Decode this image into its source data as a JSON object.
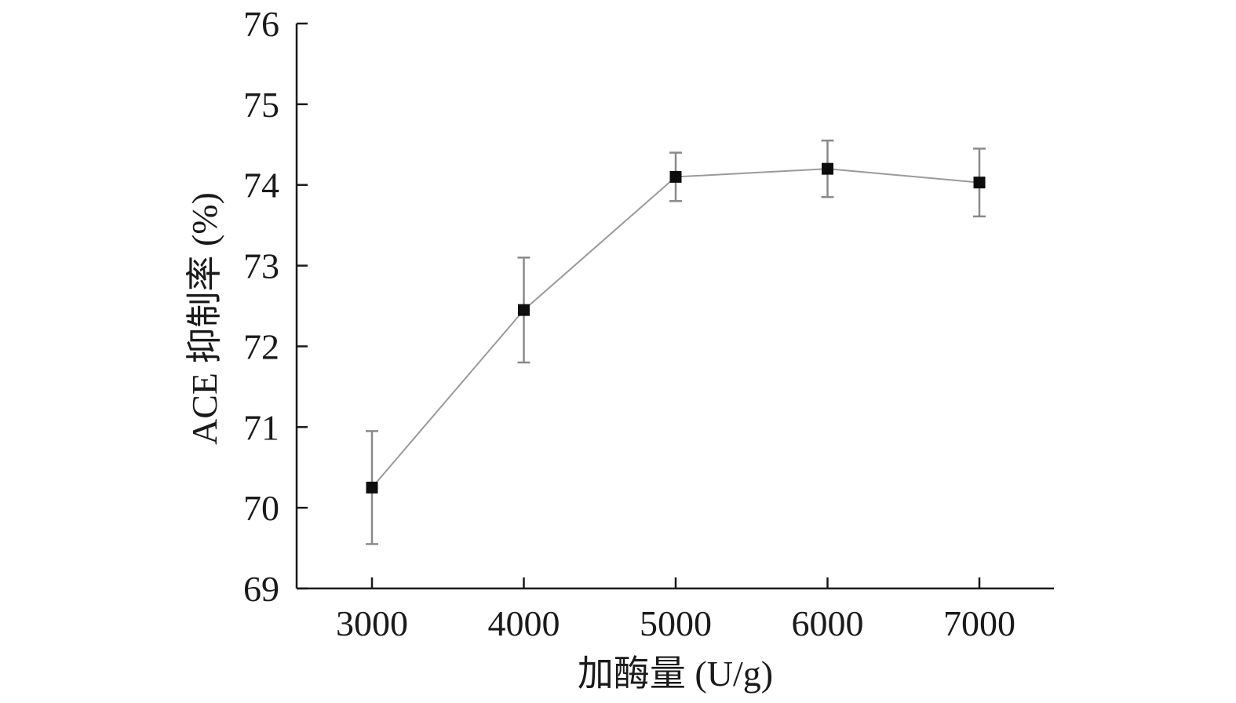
{
  "chart_data": {
    "type": "line",
    "title": "",
    "xlabel": "加酶量 (U/g)",
    "ylabel": "ACE 抑制率 (%)",
    "x": [
      3000,
      4000,
      5000,
      6000,
      7000
    ],
    "x_tick_labels": [
      "3000",
      "4000",
      "5000",
      "6000",
      "7000"
    ],
    "ylim": [
      69,
      76
    ],
    "y_ticks": [
      69,
      70,
      71,
      72,
      73,
      74,
      75,
      76
    ],
    "y_tick_labels": [
      "69",
      "70",
      "71",
      "72",
      "73",
      "74",
      "75",
      "76"
    ],
    "grid": false,
    "series": [
      {
        "values": [
          70.25,
          72.45,
          74.1,
          74.2,
          74.03
        ],
        "error": [
          0.7,
          0.65,
          0.3,
          0.35,
          0.42
        ],
        "color": "#9a9a9a",
        "marker_color": "#0d0d0d",
        "error_color": "#8a8a8a"
      }
    ]
  }
}
